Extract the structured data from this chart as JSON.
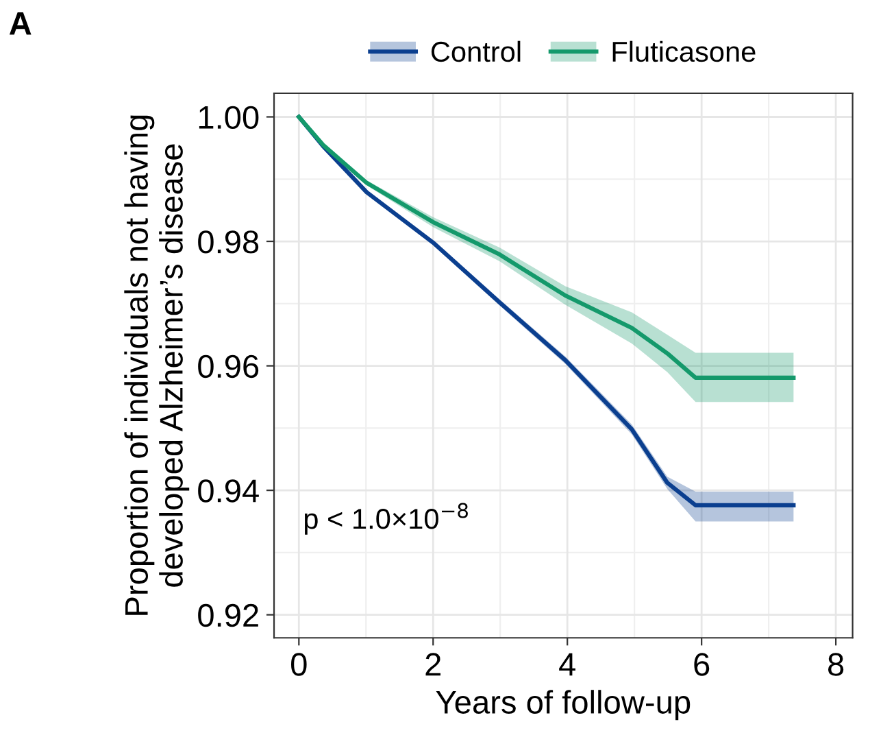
{
  "chart_data": {
    "type": "line",
    "title": "A",
    "xlabel": "Years of follow-up",
    "ylabel": "Proportion of individuals not having\ndeveloped Alzheimer’s disease",
    "annotations": [
      "p < 1.0×10$^{−8}$"
    ],
    "series": [
      {
        "name": "Control",
        "color": "#0b3f8f",
        "x": [
          0,
          0.36,
          1.01,
          2,
          2.99,
          3.97,
          4.96,
          5.49,
          5.91,
          7.37
        ],
        "values": [
          1.0,
          0.9953,
          0.9879,
          0.9798,
          0.9702,
          0.9609,
          0.9498,
          0.9412,
          0.9376,
          0.9376
        ],
        "lower": [
          1.0,
          0.9951,
          0.9876,
          0.9794,
          0.9697,
          0.9603,
          0.949,
          0.9402,
          0.935,
          0.935
        ],
        "upper": [
          1.0,
          0.9955,
          0.9882,
          0.9802,
          0.9707,
          0.9615,
          0.9506,
          0.9422,
          0.9398,
          0.9398
        ]
      },
      {
        "name": "Fluticasone",
        "color": "#14996b",
        "x": [
          0,
          0.36,
          1.01,
          2,
          2.99,
          3.97,
          4.96,
          5.49,
          5.91,
          7.37
        ],
        "values": [
          1.0,
          0.9955,
          0.9894,
          0.9831,
          0.9779,
          0.9713,
          0.9661,
          0.962,
          0.9581,
          0.9581
        ],
        "lower": [
          1.0,
          0.9953,
          0.989,
          0.9823,
          0.9768,
          0.9698,
          0.9636,
          0.959,
          0.9542,
          0.9542
        ],
        "upper": [
          1.0,
          0.9957,
          0.9898,
          0.9839,
          0.979,
          0.9728,
          0.9686,
          0.965,
          0.9621,
          0.9621
        ]
      }
    ],
    "xlim": [
      -0.37,
      8.25
    ],
    "ylim": [
      0.9163,
      1.0038
    ],
    "xticks": [
      0,
      2,
      4,
      6,
      8
    ],
    "yticks": [
      {
        "value": 0.92,
        "label": "0.92"
      },
      {
        "value": 0.94,
        "label": "0.94"
      },
      {
        "value": 0.96,
        "label": "0.96"
      },
      {
        "value": 0.98,
        "label": "0.98"
      },
      {
        "value": 1.0,
        "label": "1.00"
      }
    ],
    "grid": true,
    "legend": "top"
  }
}
